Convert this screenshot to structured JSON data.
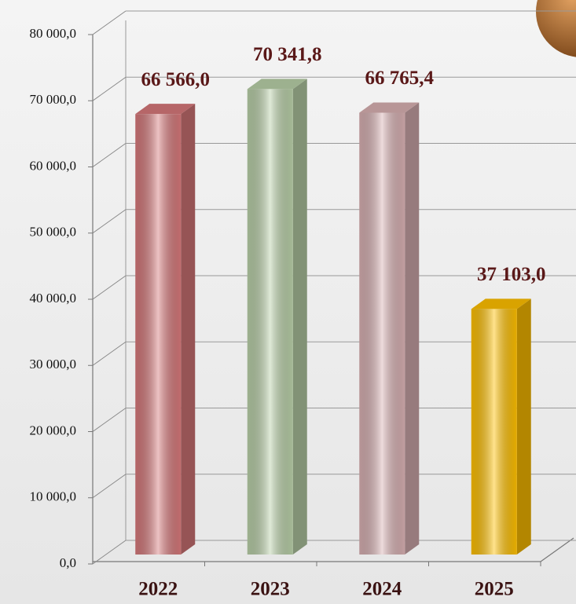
{
  "chart_data": {
    "type": "bar3d",
    "categories": [
      "2022",
      "2023",
      "2024",
      "2025"
    ],
    "values": [
      66566.0,
      70341.8,
      66765.4,
      37103.0
    ],
    "value_labels": [
      "66 566,0",
      "70 341,8",
      "66 765,4",
      "37 103,0"
    ],
    "colors": [
      "#d6787a",
      "#b9d0a8",
      "#d8b0b2",
      "#ffc000"
    ],
    "ylim": [
      0,
      80000
    ],
    "yticks": [
      {
        "value": 0,
        "label": "0,0"
      },
      {
        "value": 10000,
        "label": "10 000,0"
      },
      {
        "value": 20000,
        "label": "20 000,0"
      },
      {
        "value": 30000,
        "label": "30 000,0"
      },
      {
        "value": 40000,
        "label": "40 000,0"
      },
      {
        "value": 50000,
        "label": "50 000,0"
      },
      {
        "value": 60000,
        "label": "60 000,0"
      },
      {
        "value": 70000,
        "label": "70 000,0"
      },
      {
        "value": 80000,
        "label": "80 000,0"
      }
    ],
    "grid": true
  }
}
